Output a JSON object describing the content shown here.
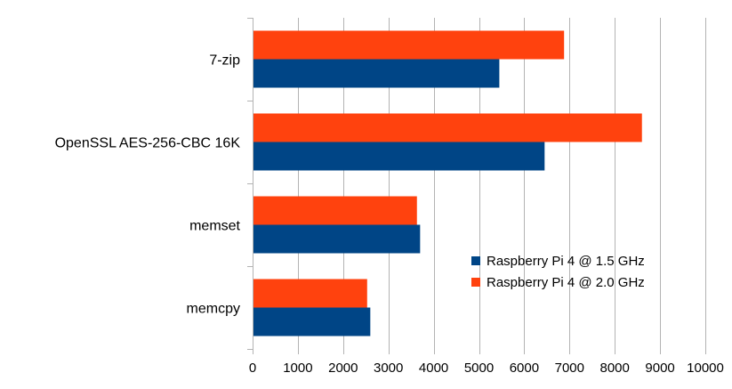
{
  "chart_data": {
    "type": "bar",
    "orientation": "horizontal",
    "categories": [
      "7-zip",
      "OpenSSL AES-256-CBC 16K",
      "memset",
      "memcpy"
    ],
    "series": [
      {
        "name": "Raspberry Pi 4 @ 1.5 GHz",
        "color": "#004586",
        "values": [
          5450,
          6450,
          3700,
          2600
        ]
      },
      {
        "name": "Raspberry Pi 4 @ 2.0 GHz",
        "color": "#ff420e",
        "values": [
          6880,
          8600,
          3630,
          2530
        ]
      }
    ],
    "xlim": [
      0,
      10000
    ],
    "xticks": [
      0,
      1000,
      2000,
      3000,
      4000,
      5000,
      6000,
      7000,
      8000,
      9000,
      10000
    ],
    "grid": true,
    "legend_position": "bottom-right",
    "title": "",
    "xlabel": "",
    "ylabel": ""
  }
}
